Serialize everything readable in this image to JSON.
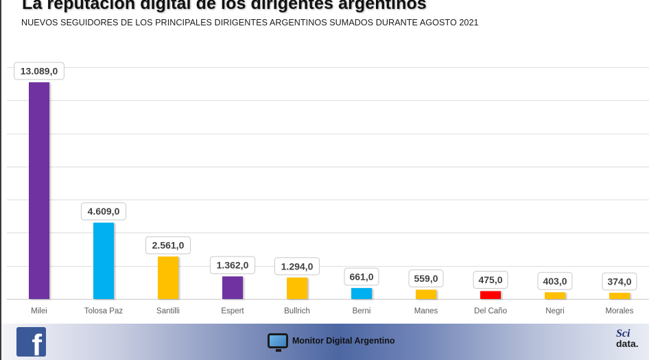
{
  "header": {
    "title": "La reputación digital de los dirigentes argentinos",
    "subtitle": "NUEVOS SEGUIDORES DE LOS PRINCIPALES DIRIGENTES ARGENTINOS SUMADOS DURANTE AGOSTO 2021"
  },
  "chart_data": {
    "type": "bar",
    "title": "La reputación digital de los dirigentes argentinos",
    "subtitle": "NUEVOS SEGUIDORES DE LOS PRINCIPALES DIRIGENTES ARGENTINOS SUMADOS DURANTE AGOSTO 2021",
    "xlabel": "",
    "ylabel": "",
    "ylim": [
      0,
      14000
    ],
    "grid_step": 2000,
    "grid": true,
    "legend": "none",
    "categories": [
      "Milei",
      "Tolosa Paz",
      "Santilli",
      "Espert",
      "Bullrich",
      "Berni",
      "Manes",
      "Del Caño",
      "Negri",
      "Morales"
    ],
    "values": [
      13089,
      4609,
      2561,
      1362,
      1294,
      661,
      559,
      475,
      403,
      374
    ],
    "data_labels": [
      "13.089,0",
      "4.609,0",
      "2.561,0",
      "1.362,0",
      "1.294,0",
      "661,0",
      "559,0",
      "475,0",
      "403,0",
      "374,0"
    ],
    "colors": [
      "#7030a0",
      "#00b0f0",
      "#ffc000",
      "#7030a0",
      "#ffc000",
      "#00b0f0",
      "#ffc000",
      "#ff0000",
      "#ffc000",
      "#ffc000"
    ]
  },
  "footer": {
    "facebook_icon": "facebook-logo-icon",
    "facebook_letter": "f",
    "monitor_icon": "monitor-icon",
    "monitor_label": "Monitor Digital Argentino",
    "scidata_sci": "Sci",
    "scidata_data": "data."
  }
}
